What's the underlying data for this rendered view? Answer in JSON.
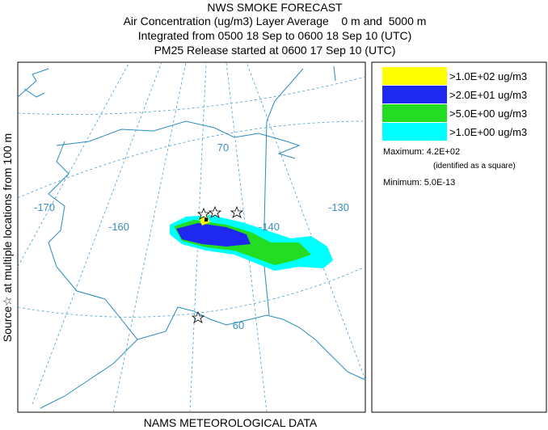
{
  "header": {
    "title": "NWS SMOKE FORECAST",
    "lines": [
      "Air Concentration (ug/m3) Layer Average    0 m and  5000 m",
      "Integrated from 0500 18 Sep to 0600 18 Sep 10 (UTC)",
      "PM25 Release started at 0600 17 Sep 10 (UTC)"
    ]
  },
  "side_label": "Source☆ at multiple locations from 100 m",
  "footer": "NAMS METEOROLOGICAL DATA",
  "map": {
    "graticule_labels": [
      "-170",
      "-160",
      "-140",
      "-130",
      "70",
      "60"
    ]
  },
  "legend": {
    "entries": [
      {
        "label": ">1.0E+02 ug/m3",
        "color": "#ffff00"
      },
      {
        "label": ">2.0E+01 ug/m3",
        "color": "#1e28f0"
      },
      {
        "label": ">5.0E+00 ug/m3",
        "color": "#22dd22"
      },
      {
        "label": ">1.0E+00 ug/m3",
        "color": "#00ffff"
      }
    ],
    "maximum": "Maximum: 4.2E+02",
    "max_note": "(identified as a square)",
    "minimum": "Minimum: 5.0E-13"
  }
}
